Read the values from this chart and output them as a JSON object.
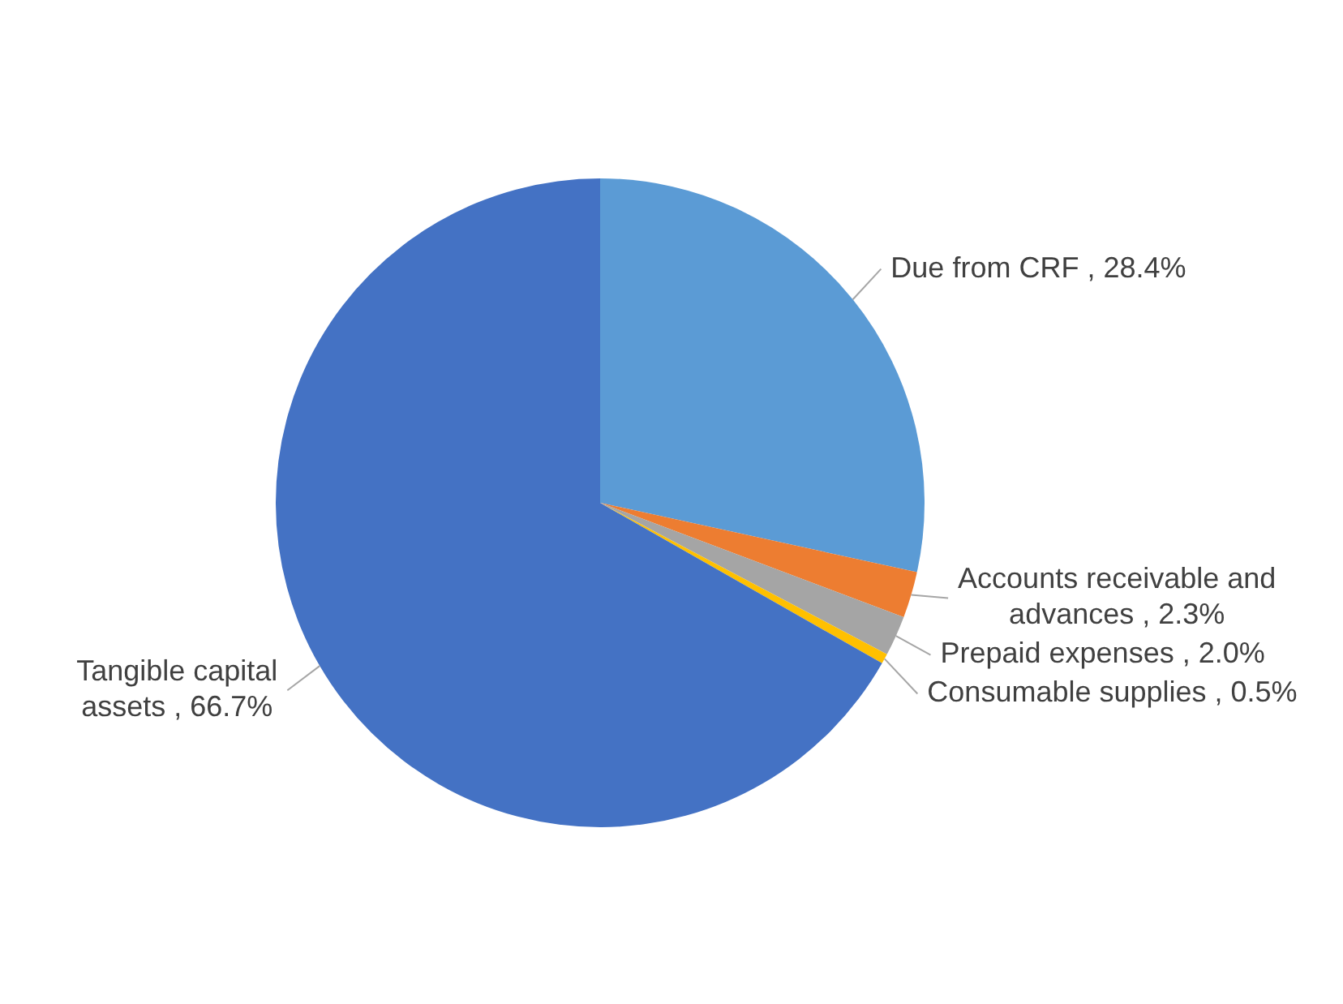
{
  "chart_data": {
    "type": "pie",
    "categories": [
      "Due from CRF",
      "Accounts receivable and advances",
      "Prepaid expenses",
      "Consumable supplies",
      "Tangible capital assets"
    ],
    "values": [
      28.4,
      2.3,
      2.0,
      0.5,
      66.7
    ],
    "colors": [
      "#5b9bd5",
      "#ed7d31",
      "#a5a5a5",
      "#ffc000",
      "#4472c4"
    ],
    "value_labels": [
      "28.4%",
      "2.3%",
      "2.0%",
      "0.5%",
      "66.7%"
    ],
    "legend": false
  }
}
